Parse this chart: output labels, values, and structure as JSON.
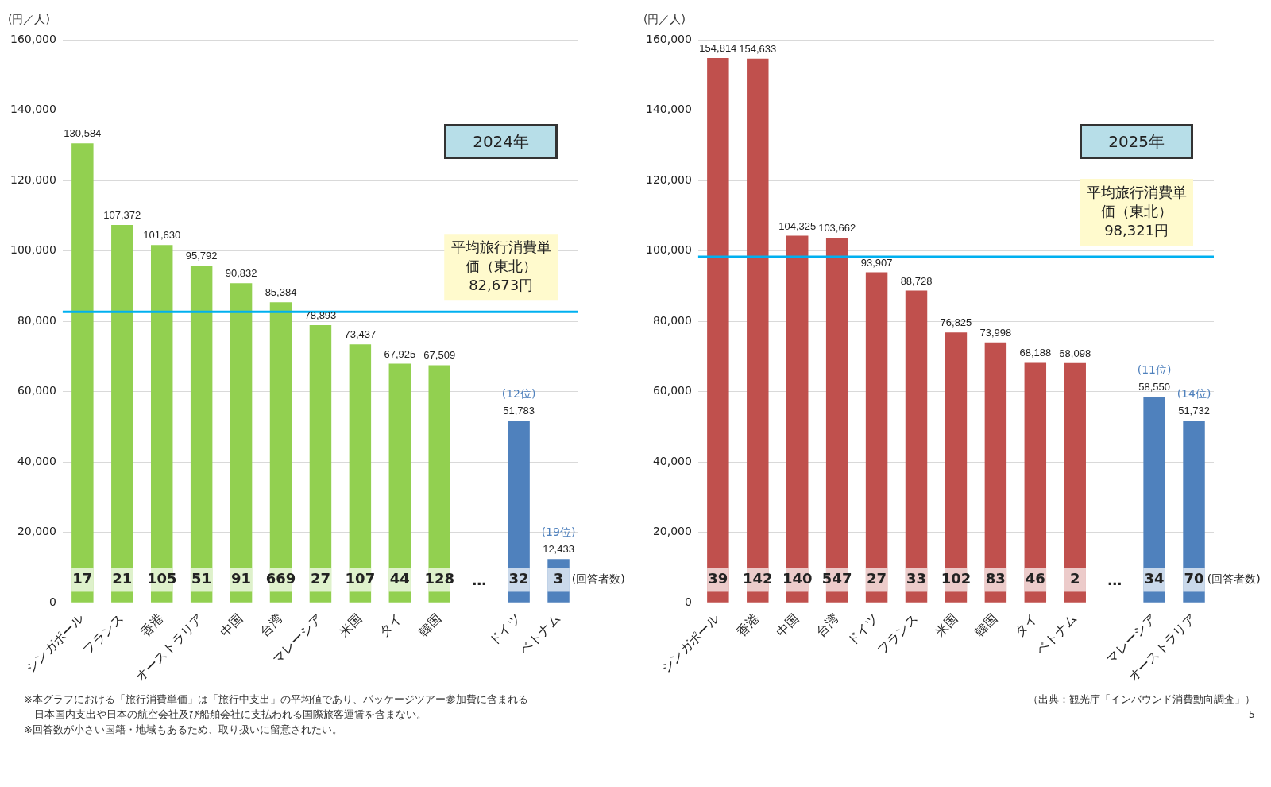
{
  "chart_data": [
    {
      "type": "bar",
      "title": "2024年",
      "ylabel": "(円／人)",
      "categories": [
        "シンガポール",
        "フランス",
        "香港",
        "オーストラリア",
        "中国",
        "台湾",
        "マレーシア",
        "米国",
        "タイ",
        "韓国",
        null,
        "ドイツ",
        "ベトナム"
      ],
      "values": [
        130584,
        107372,
        101630,
        95792,
        90832,
        85384,
        78893,
        73437,
        67925,
        67509,
        null,
        51783,
        12433
      ],
      "value_labels": [
        "130,584",
        "107,372",
        "101,630",
        "95,792",
        "90,832",
        "85,384",
        "78,893",
        "73,437",
        "67,925",
        "67,509",
        null,
        "51,783",
        "12,433"
      ],
      "colors": [
        "#92d050",
        "#92d050",
        "#92d050",
        "#92d050",
        "#92d050",
        "#92d050",
        "#92d050",
        "#92d050",
        "#92d050",
        "#92d050",
        "#92d050",
        "#4f81bd",
        "#4f81bd"
      ],
      "ylim": [
        0,
        160000
      ],
      "yticks": [
        0,
        {
          "value": 20000,
          "label": "20,000"
        },
        {
          "value": 40000,
          "label": "40,000"
        },
        {
          "value": 60000,
          "label": "60,000"
        },
        {
          "value": 80000,
          "label": "80,000"
        },
        {
          "value": 100000,
          "label": "100,000"
        },
        {
          "value": 120000,
          "label": "120,000"
        },
        {
          "value": 140000,
          "label": "140,000"
        },
        {
          "value": 160000,
          "label": "160,000"
        }
      ],
      "grid": "y",
      "legend": false,
      "ref_lines": [
        {
          "axis": "y",
          "value": 82673,
          "label": "平均旅行消費単価（東北）82,673円",
          "color": "#00b0f0"
        }
      ],
      "annotations": [
        {
          "text": "17",
          "x": "シンガポール",
          "y": 6500
        },
        {
          "text": "21",
          "x": "フランス",
          "y": 6500
        },
        {
          "text": "105",
          "x": "香港",
          "y": 6500
        },
        {
          "text": "51",
          "x": "オーストラリア",
          "y": 6500
        },
        {
          "text": "91",
          "x": "中国",
          "y": 6500
        },
        {
          "text": "669",
          "x": "台湾",
          "y": 6500
        },
        {
          "text": "27",
          "x": "マレーシア",
          "y": 6500
        },
        {
          "text": "107",
          "x": "米国",
          "y": 6500
        },
        {
          "text": "44",
          "x": "タイ",
          "y": 6500
        },
        {
          "text": "128",
          "x": "韓国",
          "y": 6500
        },
        {
          "text": "32",
          "x": "ドイツ",
          "y": 6500
        },
        {
          "text": "3",
          "x": "ベトナム",
          "y": 6500
        },
        {
          "text": "(12位)",
          "x": "ドイツ",
          "y": 51783
        },
        {
          "text": "(19位)",
          "x": "ベトナム",
          "y": 12433
        },
        "…",
        "(回答者数)",
        "※本グラフにおける「旅行消費単価」は「旅行中支出」の平均値であり、パッケージツアー参加費に含まれる",
        "　日本国内支出や日本の航空会社及び船舶会社に支払われる国際旅客運賃を含まない。",
        "※回答数が小さい国籍・地域もあるため、取り扱いに留意されたい。"
      ]
    },
    {
      "type": "bar",
      "title": "2025年",
      "ylabel": "(円／人)",
      "categories": [
        "シンガポール",
        "香港",
        "中国",
        "台湾",
        "ドイツ",
        "フランス",
        "米国",
        "韓国",
        "タイ",
        "ベトナム",
        null,
        "マレーシア",
        "オーストラリア"
      ],
      "values": [
        154814,
        154633,
        104325,
        103662,
        93907,
        88728,
        76825,
        73998,
        68188,
        68098,
        null,
        58550,
        51732
      ],
      "value_labels": [
        "154,814",
        "154,633",
        "104,325",
        "103,662",
        "93,907",
        "88,728",
        "76,825",
        "73,998",
        "68,188",
        "68,098",
        null,
        "58,550",
        "51,732"
      ],
      "colors": [
        "#c0504d",
        "#c0504d",
        "#c0504d",
        "#c0504d",
        "#c0504d",
        "#c0504d",
        "#c0504d",
        "#c0504d",
        "#c0504d",
        "#c0504d",
        "#c0504d",
        "#4f81bd",
        "#4f81bd"
      ],
      "ylim": [
        0,
        160000
      ],
      "yticks": [
        0,
        {
          "value": 20000,
          "label": "20,000"
        },
        {
          "value": 40000,
          "label": "40,000"
        },
        {
          "value": 60000,
          "label": "60,000"
        },
        {
          "value": 80000,
          "label": "80,000"
        },
        {
          "value": 100000,
          "label": "100,000"
        },
        {
          "value": 120000,
          "label": "120,000"
        },
        {
          "value": 140000,
          "label": "140,000"
        },
        {
          "value": 160000,
          "label": "160,000"
        }
      ],
      "grid": "y",
      "legend": false,
      "ref_lines": [
        {
          "axis": "y",
          "value": 98321,
          "label": "平均旅行消費単価（東北）98,321円",
          "color": "#00b0f0"
        }
      ],
      "annotations": [
        {
          "text": "39",
          "x": "シンガポール",
          "y": 6500
        },
        {
          "text": "142",
          "x": "香港",
          "y": 6500
        },
        {
          "text": "140",
          "x": "中国",
          "y": 6500
        },
        {
          "text": "547",
          "x": "台湾",
          "y": 6500
        },
        {
          "text": "27",
          "x": "ドイツ",
          "y": 6500
        },
        {
          "text": "33",
          "x": "フランス",
          "y": 6500
        },
        {
          "text": "102",
          "x": "米国",
          "y": 6500
        },
        {
          "text": "83",
          "x": "韓国",
          "y": 6500
        },
        {
          "text": "46",
          "x": "タイ",
          "y": 6500
        },
        {
          "text": "2",
          "x": "ベトナム",
          "y": 6500
        },
        {
          "text": "34",
          "x": "マレーシア",
          "y": 6500
        },
        {
          "text": "70",
          "x": "オーストラリア",
          "y": 6500
        },
        {
          "text": "(11位)",
          "x": "マレーシア",
          "y": 58550
        },
        {
          "text": "(14位)",
          "x": "オーストラリア",
          "y": 51732
        },
        "…",
        "(回答者数)",
        "（出典：観光庁「インバウンド消費動向調査」）",
        "5"
      ]
    }
  ]
}
